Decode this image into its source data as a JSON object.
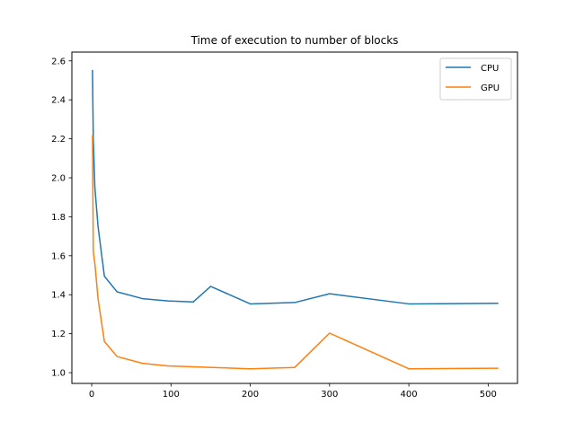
{
  "chart_data": {
    "type": "line",
    "title": "Time of execution to number of blocks",
    "xlabel": "",
    "ylabel": "",
    "xlim": [
      -25,
      537
    ],
    "ylim": [
      0.945,
      2.645
    ],
    "xticks": [
      0,
      100,
      200,
      300,
      400,
      500
    ],
    "yticks": [
      1.0,
      1.2,
      1.4,
      1.6,
      1.8,
      2.0,
      2.2,
      2.4,
      2.6
    ],
    "grid": false,
    "legend_position": "top-right",
    "series": [
      {
        "name": "CPU",
        "color": "#1f77b4",
        "x": [
          1,
          2,
          4,
          8,
          16,
          32,
          64,
          96,
          128,
          150,
          200,
          256,
          300,
          400,
          512
        ],
        "y": [
          2.55,
          2.2,
          1.95,
          1.75,
          1.495,
          1.415,
          1.38,
          1.368,
          1.363,
          1.443,
          1.353,
          1.36,
          1.405,
          1.353,
          1.356
        ]
      },
      {
        "name": "GPU",
        "color": "#ff7f0e",
        "x": [
          1,
          2,
          4,
          8,
          16,
          32,
          64,
          96,
          128,
          200,
          256,
          300,
          400,
          512
        ],
        "y": [
          2.215,
          1.62,
          1.56,
          1.38,
          1.16,
          1.083,
          1.048,
          1.035,
          1.03,
          1.02,
          1.027,
          1.203,
          1.02,
          1.023
        ]
      }
    ]
  }
}
